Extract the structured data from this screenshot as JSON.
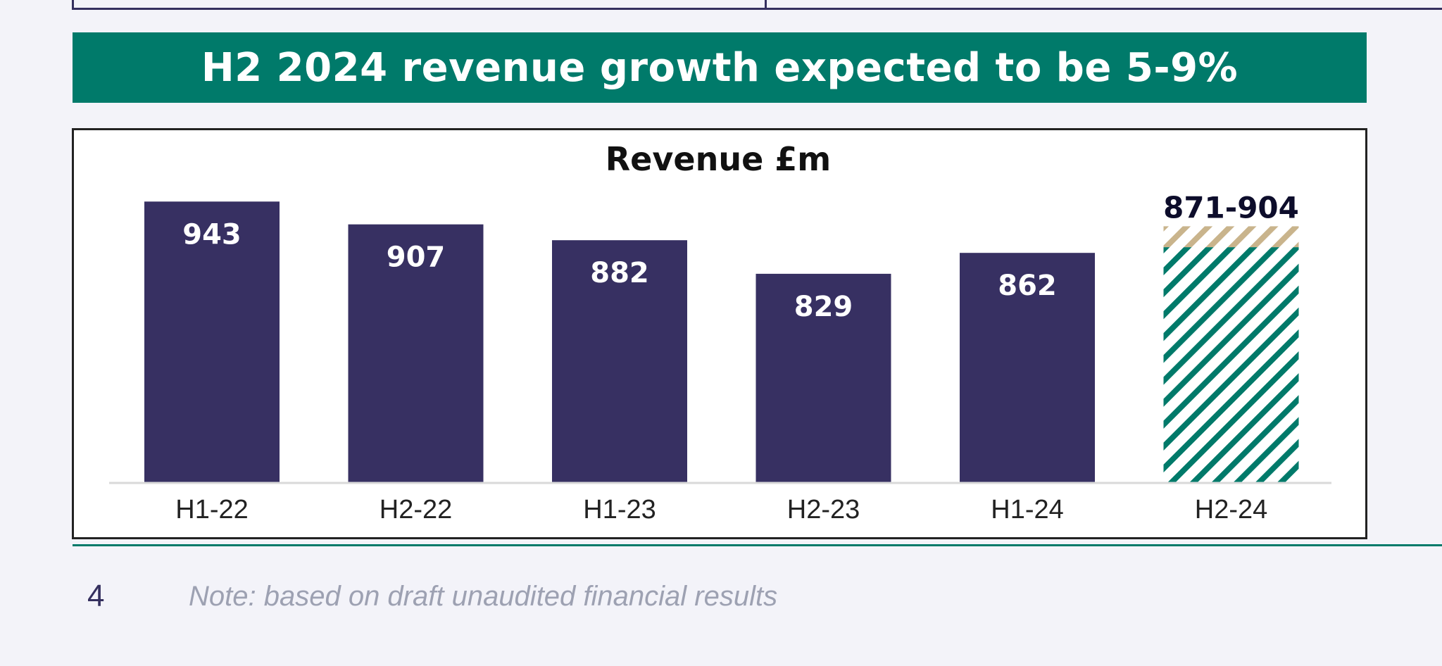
{
  "banner": {
    "title": "H2 2024 revenue growth expected to be 5-9%"
  },
  "footer": {
    "page_number": "4",
    "note": "Note: based on draft unaudited financial results"
  },
  "colors": {
    "bar": "#373062",
    "accent_teal": "#007a6a",
    "hatch_tan": "#c9b48c",
    "background": "#f3f3f9"
  },
  "chart_data": {
    "type": "bar",
    "title": "Revenue £m",
    "categories": [
      "H1-22",
      "H2-22",
      "H1-23",
      "H2-23",
      "H1-24",
      "H2-24"
    ],
    "values": [
      943,
      907,
      882,
      829,
      862,
      null
    ],
    "value_labels": [
      "943",
      "907",
      "882",
      "829",
      "862",
      "871-904"
    ],
    "forecast": {
      "category": "H2-24",
      "low": 871,
      "high": 904,
      "pattern": "hatched"
    },
    "ylim": [
      500,
      960
    ],
    "grid": false,
    "legend": "none"
  }
}
